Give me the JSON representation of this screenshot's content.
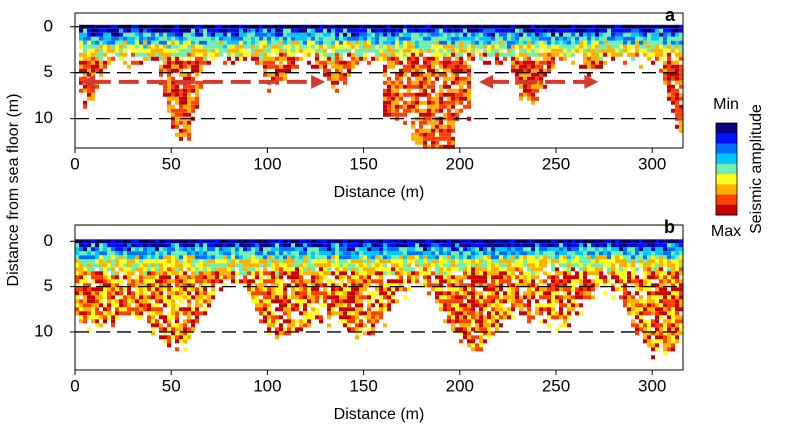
{
  "chart_data": [
    {
      "type": "image",
      "panel": "a",
      "xlabel": "Distance (m)",
      "xlim": [
        0,
        316
      ],
      "ylim": [
        -1.5,
        13.2
      ],
      "xticks": [
        0,
        50,
        100,
        150,
        200,
        250,
        300
      ],
      "yticks": [
        0,
        5,
        10
      ],
      "hlines": [
        0,
        5,
        10
      ],
      "arrows": [
        {
          "x": [
            3,
            130
          ],
          "y": 6
        },
        {
          "x": [
            210,
            272
          ],
          "y": 6
        }
      ],
      "arrow_color": "#d63a2e"
    },
    {
      "type": "image",
      "panel": "b",
      "xlabel": "Distance (m)",
      "xlim": [
        0,
        316
      ],
      "ylim": [
        -1.8,
        14.2
      ],
      "xticks": [
        0,
        50,
        100,
        150,
        200,
        250,
        300
      ],
      "yticks": [
        0,
        5,
        10
      ],
      "hlines": [
        0,
        5,
        10
      ]
    }
  ],
  "figure": {
    "ylabel": "Distance from sea floor (m)",
    "colorbar": {
      "label": "Seismic amplitude",
      "min_label": "Min",
      "max_label": "Max",
      "colors": [
        "#0a0080",
        "#0010ff",
        "#0070ff",
        "#00c8ff",
        "#70f0b0",
        "#ffff20",
        "#ffb000",
        "#ff4000",
        "#c80000"
      ]
    }
  }
}
